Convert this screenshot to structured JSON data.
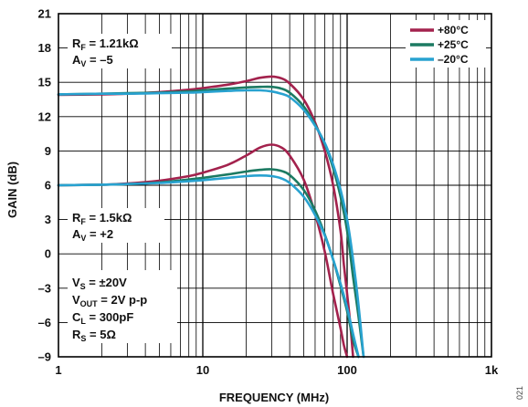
{
  "chart_data": {
    "type": "line",
    "xlabel": "FREQUENCY (MHz)",
    "ylabel": "GAIN (dB)",
    "x_scale": "log",
    "xlim": [
      1,
      1000
    ],
    "ylim": [
      -9,
      21
    ],
    "grid": true,
    "x_ticks": [
      {
        "value": 1,
        "label": "1"
      },
      {
        "value": 10,
        "label": "10"
      },
      {
        "value": 100,
        "label": "100"
      },
      {
        "value": 1000,
        "label": "1k"
      }
    ],
    "y_ticks": [
      {
        "value": 21,
        "label": "21"
      },
      {
        "value": 18,
        "label": "18"
      },
      {
        "value": 15,
        "label": "15"
      },
      {
        "value": 12,
        "label": "12"
      },
      {
        "value": 9,
        "label": "9"
      },
      {
        "value": 6,
        "label": "6"
      },
      {
        "value": 3,
        "label": "3"
      },
      {
        "value": 0,
        "label": "0"
      },
      {
        "value": -3,
        "label": "–3"
      },
      {
        "value": -6,
        "label": "–6"
      },
      {
        "value": -9,
        "label": "–9"
      }
    ],
    "legend": {
      "position": "top-right",
      "entries": [
        {
          "label": "+80°C",
          "color": "#a3224d"
        },
        {
          "label": "+25°C",
          "color": "#1c7a62"
        },
        {
          "label": "–20°C",
          "color": "#28a2d0"
        }
      ]
    },
    "annotations": {
      "av5": {
        "rf_main": "R",
        "rf_sub": "F",
        "rf_val": " = 1.21kΩ",
        "av_main": "A",
        "av_sub": "V",
        "av_val": " = –5"
      },
      "av2": {
        "rf_main": "R",
        "rf_sub": "F",
        "rf_val": " = 1.5kΩ",
        "av_main": "A",
        "av_sub": "V",
        "av_val": " = +2"
      },
      "conditions": [
        {
          "main": "V",
          "sub": "S",
          "val": " = ±20V"
        },
        {
          "main": "V",
          "sub": "OUT",
          "val": " = 2V p-p"
        },
        {
          "main": "C",
          "sub": "L",
          "val": " = 300pF"
        },
        {
          "main": "R",
          "sub": "S",
          "val": " = 5Ω"
        }
      ]
    },
    "figure_number": "021",
    "series": [
      {
        "group": "AV=-5",
        "temp": "+80°C",
        "color": "#a3224d",
        "points": [
          [
            1,
            13.9
          ],
          [
            2,
            13.95
          ],
          [
            3,
            14.0
          ],
          [
            5,
            14.15
          ],
          [
            8,
            14.35
          ],
          [
            10,
            14.5
          ],
          [
            15,
            14.8
          ],
          [
            20,
            15.1
          ],
          [
            25,
            15.4
          ],
          [
            30,
            15.5
          ],
          [
            35,
            15.35
          ],
          [
            40,
            14.9
          ],
          [
            50,
            13.5
          ],
          [
            60,
            11.5
          ],
          [
            70,
            9.0
          ],
          [
            80,
            6.0
          ],
          [
            90,
            2.0
          ],
          [
            95,
            -1.0
          ],
          [
            100,
            -3.5
          ],
          [
            105,
            -6.0
          ],
          [
            110,
            -9.0
          ]
        ]
      },
      {
        "group": "AV=-5",
        "temp": "+25°C",
        "color": "#1c7a62",
        "points": [
          [
            1,
            13.95
          ],
          [
            2,
            14.0
          ],
          [
            3,
            14.05
          ],
          [
            5,
            14.1
          ],
          [
            8,
            14.2
          ],
          [
            10,
            14.3
          ],
          [
            15,
            14.45
          ],
          [
            20,
            14.55
          ],
          [
            25,
            14.6
          ],
          [
            30,
            14.6
          ],
          [
            35,
            14.45
          ],
          [
            40,
            14.1
          ],
          [
            50,
            12.9
          ],
          [
            60,
            11.3
          ],
          [
            70,
            9.6
          ],
          [
            80,
            7.5
          ],
          [
            90,
            5.0
          ],
          [
            100,
            2.0
          ],
          [
            110,
            -2.0
          ],
          [
            120,
            -5.5
          ],
          [
            130,
            -9.0
          ]
        ]
      },
      {
        "group": "AV=-5",
        "temp": "–20°C",
        "color": "#28a2d0",
        "points": [
          [
            1,
            13.95
          ],
          [
            2,
            14.0
          ],
          [
            3,
            14.0
          ],
          [
            5,
            14.05
          ],
          [
            8,
            14.1
          ],
          [
            10,
            14.15
          ],
          [
            15,
            14.25
          ],
          [
            20,
            14.3
          ],
          [
            25,
            14.3
          ],
          [
            30,
            14.2
          ],
          [
            35,
            14.0
          ],
          [
            40,
            13.7
          ],
          [
            50,
            12.6
          ],
          [
            60,
            11.2
          ],
          [
            70,
            9.7
          ],
          [
            80,
            7.8
          ],
          [
            90,
            5.6
          ],
          [
            100,
            3.0
          ],
          [
            110,
            -0.5
          ],
          [
            120,
            -4.5
          ],
          [
            130,
            -9.0
          ]
        ]
      },
      {
        "group": "AV=+2",
        "temp": "+80°C",
        "color": "#a3224d",
        "points": [
          [
            1,
            6.0
          ],
          [
            2,
            6.05
          ],
          [
            3,
            6.15
          ],
          [
            5,
            6.4
          ],
          [
            8,
            6.8
          ],
          [
            10,
            7.1
          ],
          [
            15,
            7.8
          ],
          [
            20,
            8.6
          ],
          [
            25,
            9.3
          ],
          [
            30,
            9.55
          ],
          [
            35,
            9.3
          ],
          [
            40,
            8.6
          ],
          [
            50,
            6.5
          ],
          [
            60,
            3.5
          ],
          [
            70,
            0.2
          ],
          [
            80,
            -3.5
          ],
          [
            90,
            -6.5
          ],
          [
            95,
            -8.0
          ],
          [
            100,
            -9.0
          ]
        ]
      },
      {
        "group": "AV=+2",
        "temp": "+25°C",
        "color": "#1c7a62",
        "points": [
          [
            1,
            6.0
          ],
          [
            2,
            6.05
          ],
          [
            3,
            6.1
          ],
          [
            5,
            6.25
          ],
          [
            8,
            6.5
          ],
          [
            10,
            6.65
          ],
          [
            15,
            6.95
          ],
          [
            20,
            7.2
          ],
          [
            25,
            7.35
          ],
          [
            30,
            7.4
          ],
          [
            35,
            7.25
          ],
          [
            40,
            6.9
          ],
          [
            50,
            5.6
          ],
          [
            60,
            3.8
          ],
          [
            70,
            1.7
          ],
          [
            80,
            -0.5
          ],
          [
            90,
            -2.8
          ],
          [
            100,
            -5.0
          ],
          [
            110,
            -7.5
          ],
          [
            120,
            -9.0
          ]
        ]
      },
      {
        "group": "AV=+2",
        "temp": "–20°C",
        "color": "#28a2d0",
        "points": [
          [
            1,
            6.0
          ],
          [
            2,
            6.05
          ],
          [
            3,
            6.1
          ],
          [
            5,
            6.2
          ],
          [
            8,
            6.35
          ],
          [
            10,
            6.45
          ],
          [
            15,
            6.65
          ],
          [
            20,
            6.8
          ],
          [
            25,
            6.85
          ],
          [
            30,
            6.8
          ],
          [
            35,
            6.6
          ],
          [
            40,
            6.2
          ],
          [
            50,
            5.0
          ],
          [
            60,
            3.4
          ],
          [
            70,
            1.6
          ],
          [
            80,
            -0.5
          ],
          [
            90,
            -2.6
          ],
          [
            100,
            -4.7
          ],
          [
            110,
            -7.0
          ],
          [
            120,
            -9.0
          ]
        ]
      }
    ]
  }
}
